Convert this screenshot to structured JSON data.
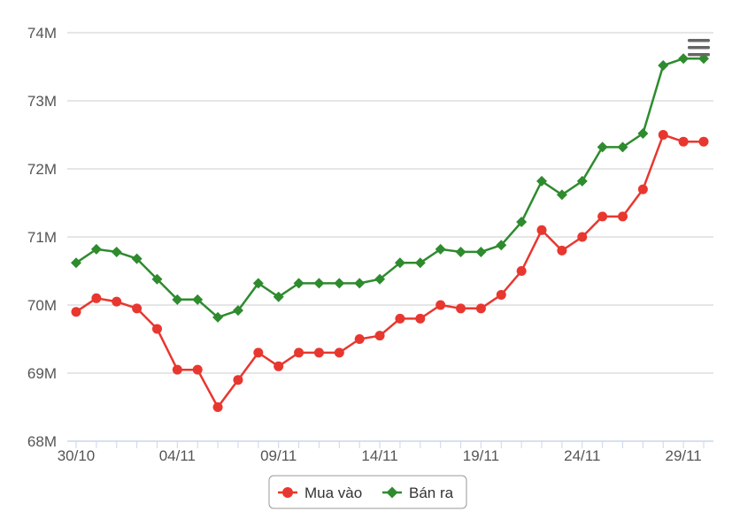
{
  "chart_data": {
    "type": "line",
    "x": [
      "30/10",
      "31/10",
      "01/11",
      "02/11",
      "03/11",
      "04/11",
      "05/11",
      "06/11",
      "07/11",
      "08/11",
      "09/11",
      "10/11",
      "11/11",
      "12/11",
      "13/11",
      "14/11",
      "15/11",
      "16/11",
      "17/11",
      "18/11",
      "19/11",
      "20/11",
      "21/11",
      "22/11",
      "23/11",
      "24/11",
      "25/11",
      "26/11",
      "27/11",
      "28/11",
      "29/11",
      "30/11"
    ],
    "x_tick_labels": [
      "30/10",
      "04/11",
      "09/11",
      "14/11",
      "19/11",
      "24/11",
      "29/11"
    ],
    "y_tick_labels": [
      "68M",
      "69M",
      "70M",
      "71M",
      "72M",
      "73M",
      "74M"
    ],
    "ylim": [
      68,
      74
    ],
    "y_unit": "M",
    "grid": true,
    "legend_position": "bottom-center",
    "series": [
      {
        "name": "Mua vào",
        "color": "#e8372f",
        "marker": "circle",
        "values": [
          69.9,
          70.1,
          70.05,
          69.95,
          69.65,
          69.05,
          69.05,
          68.5,
          68.9,
          69.3,
          69.1,
          69.3,
          69.3,
          69.3,
          69.5,
          69.55,
          69.8,
          69.8,
          70.0,
          69.95,
          69.95,
          70.15,
          70.5,
          71.1,
          70.8,
          71.0,
          71.3,
          71.3,
          71.7,
          72.5,
          72.4,
          72.4
        ]
      },
      {
        "name": "Bán ra",
        "color": "#2e8b2e",
        "marker": "diamond",
        "values": [
          70.62,
          70.82,
          70.78,
          70.68,
          70.38,
          70.08,
          70.08,
          69.82,
          69.92,
          70.32,
          70.12,
          70.32,
          70.32,
          70.32,
          70.32,
          70.38,
          70.62,
          70.62,
          70.82,
          70.78,
          70.78,
          70.88,
          71.22,
          71.82,
          71.62,
          71.82,
          72.32,
          72.32,
          72.52,
          73.52,
          73.62,
          73.62
        ]
      }
    ]
  },
  "menu": {
    "icon": "hamburger-menu-icon"
  }
}
